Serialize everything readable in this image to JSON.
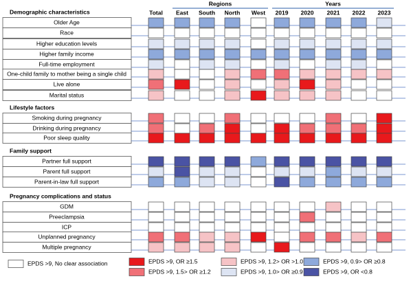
{
  "groups": [
    {
      "title": "Regions",
      "from": 1,
      "to": 4
    },
    {
      "title": "Years",
      "from": 5,
      "to": 9
    }
  ],
  "columns": [
    "Total",
    "East",
    "South",
    "North",
    "West",
    "2019",
    "2020",
    "2021",
    "2022",
    "2023"
  ],
  "sections": [
    {
      "title": "Demographic characteristics",
      "rows": [
        {
          "label": "Older Age",
          "cells": [
            5,
            5,
            5,
            5,
            0,
            5,
            5,
            5,
            5,
            4
          ]
        },
        {
          "label": "Race",
          "cells": [
            0,
            0,
            0,
            0,
            0,
            0,
            0,
            0,
            0,
            0
          ]
        },
        {
          "label": "Higher education levels",
          "cells": [
            4,
            4,
            4,
            4,
            0,
            4,
            4,
            4,
            4,
            4
          ]
        },
        {
          "label": "Higher family income",
          "cells": [
            5,
            5,
            5,
            5,
            5,
            5,
            5,
            5,
            5,
            5
          ]
        },
        {
          "label": "Full-time employment",
          "cells": [
            4,
            0,
            4,
            4,
            0,
            4,
            0,
            4,
            4,
            0
          ]
        },
        {
          "label": "One-child family to mother being a single child",
          "cells": [
            3,
            0,
            0,
            3,
            2,
            2,
            3,
            3,
            3,
            3
          ]
        },
        {
          "label": "Live alone",
          "cells": [
            2,
            1,
            0,
            3,
            0,
            3,
            1,
            3,
            0,
            0
          ]
        },
        {
          "label": "Marital status",
          "cells": [
            3,
            0,
            0,
            3,
            1,
            3,
            3,
            3,
            0,
            0
          ]
        }
      ]
    },
    {
      "title": "Lifestyle factors",
      "rows": [
        {
          "label": "Smoking during pregnancy",
          "cells": [
            2,
            0,
            0,
            2,
            0,
            0,
            0,
            2,
            0,
            1
          ]
        },
        {
          "label": "Drinking during pregnancy",
          "cells": [
            2,
            0,
            2,
            1,
            0,
            1,
            2,
            2,
            2,
            1
          ]
        },
        {
          "label": "Poor sleep quality",
          "cells": [
            1,
            1,
            1,
            1,
            1,
            1,
            1,
            1,
            1,
            1
          ]
        }
      ]
    },
    {
      "title": "Family support",
      "rows": [
        {
          "label": "Partner full support",
          "cells": [
            6,
            6,
            6,
            6,
            5,
            6,
            6,
            6,
            6,
            6
          ]
        },
        {
          "label": "Parent full support",
          "cells": [
            4,
            6,
            4,
            4,
            0,
            4,
            4,
            5,
            4,
            4
          ]
        },
        {
          "label": "Parent-in-law full support",
          "cells": [
            5,
            5,
            4,
            4,
            0,
            6,
            5,
            5,
            5,
            5
          ]
        }
      ]
    },
    {
      "title": "Pregnancy complications and status",
      "rows": [
        {
          "label": "GDM",
          "cells": [
            0,
            0,
            0,
            0,
            0,
            0,
            0,
            3,
            0,
            0
          ]
        },
        {
          "label": "Preeclampsia",
          "cells": [
            0,
            0,
            0,
            0,
            0,
            0,
            2,
            0,
            0,
            0
          ]
        },
        {
          "label": "ICP",
          "cells": [
            0,
            0,
            0,
            0,
            0,
            0,
            0,
            0,
            0,
            0
          ]
        },
        {
          "label": "Unplanned pregnancy",
          "cells": [
            2,
            2,
            3,
            3,
            1,
            0,
            2,
            2,
            3,
            2
          ]
        },
        {
          "label": "Multiple pregnancy",
          "cells": [
            3,
            3,
            3,
            3,
            0,
            1,
            0,
            0,
            0,
            0
          ]
        }
      ]
    }
  ],
  "legend": [
    {
      "label": "EPDS >9, No clear association",
      "color": "#ffffff"
    },
    {
      "label": "EPDS >9, OR ≥1.5",
      "color": "#e8191c"
    },
    {
      "label": "EPDS >9, 1.5> OR ≥1.2",
      "color": "#f07077"
    },
    {
      "label": "EPDS >9, 1.2> OR >1.0",
      "color": "#f6c3c6"
    },
    {
      "label": "EPDS >9, 1.0> OR ≥0.9",
      "color": "#dde4f3"
    },
    {
      "label": "EPDS >9, 0.9> OR ≥0.8",
      "color": "#8ea9db"
    },
    {
      "label": "EPDS >9, OR <0.8",
      "color": "#4a53a4"
    }
  ]
}
